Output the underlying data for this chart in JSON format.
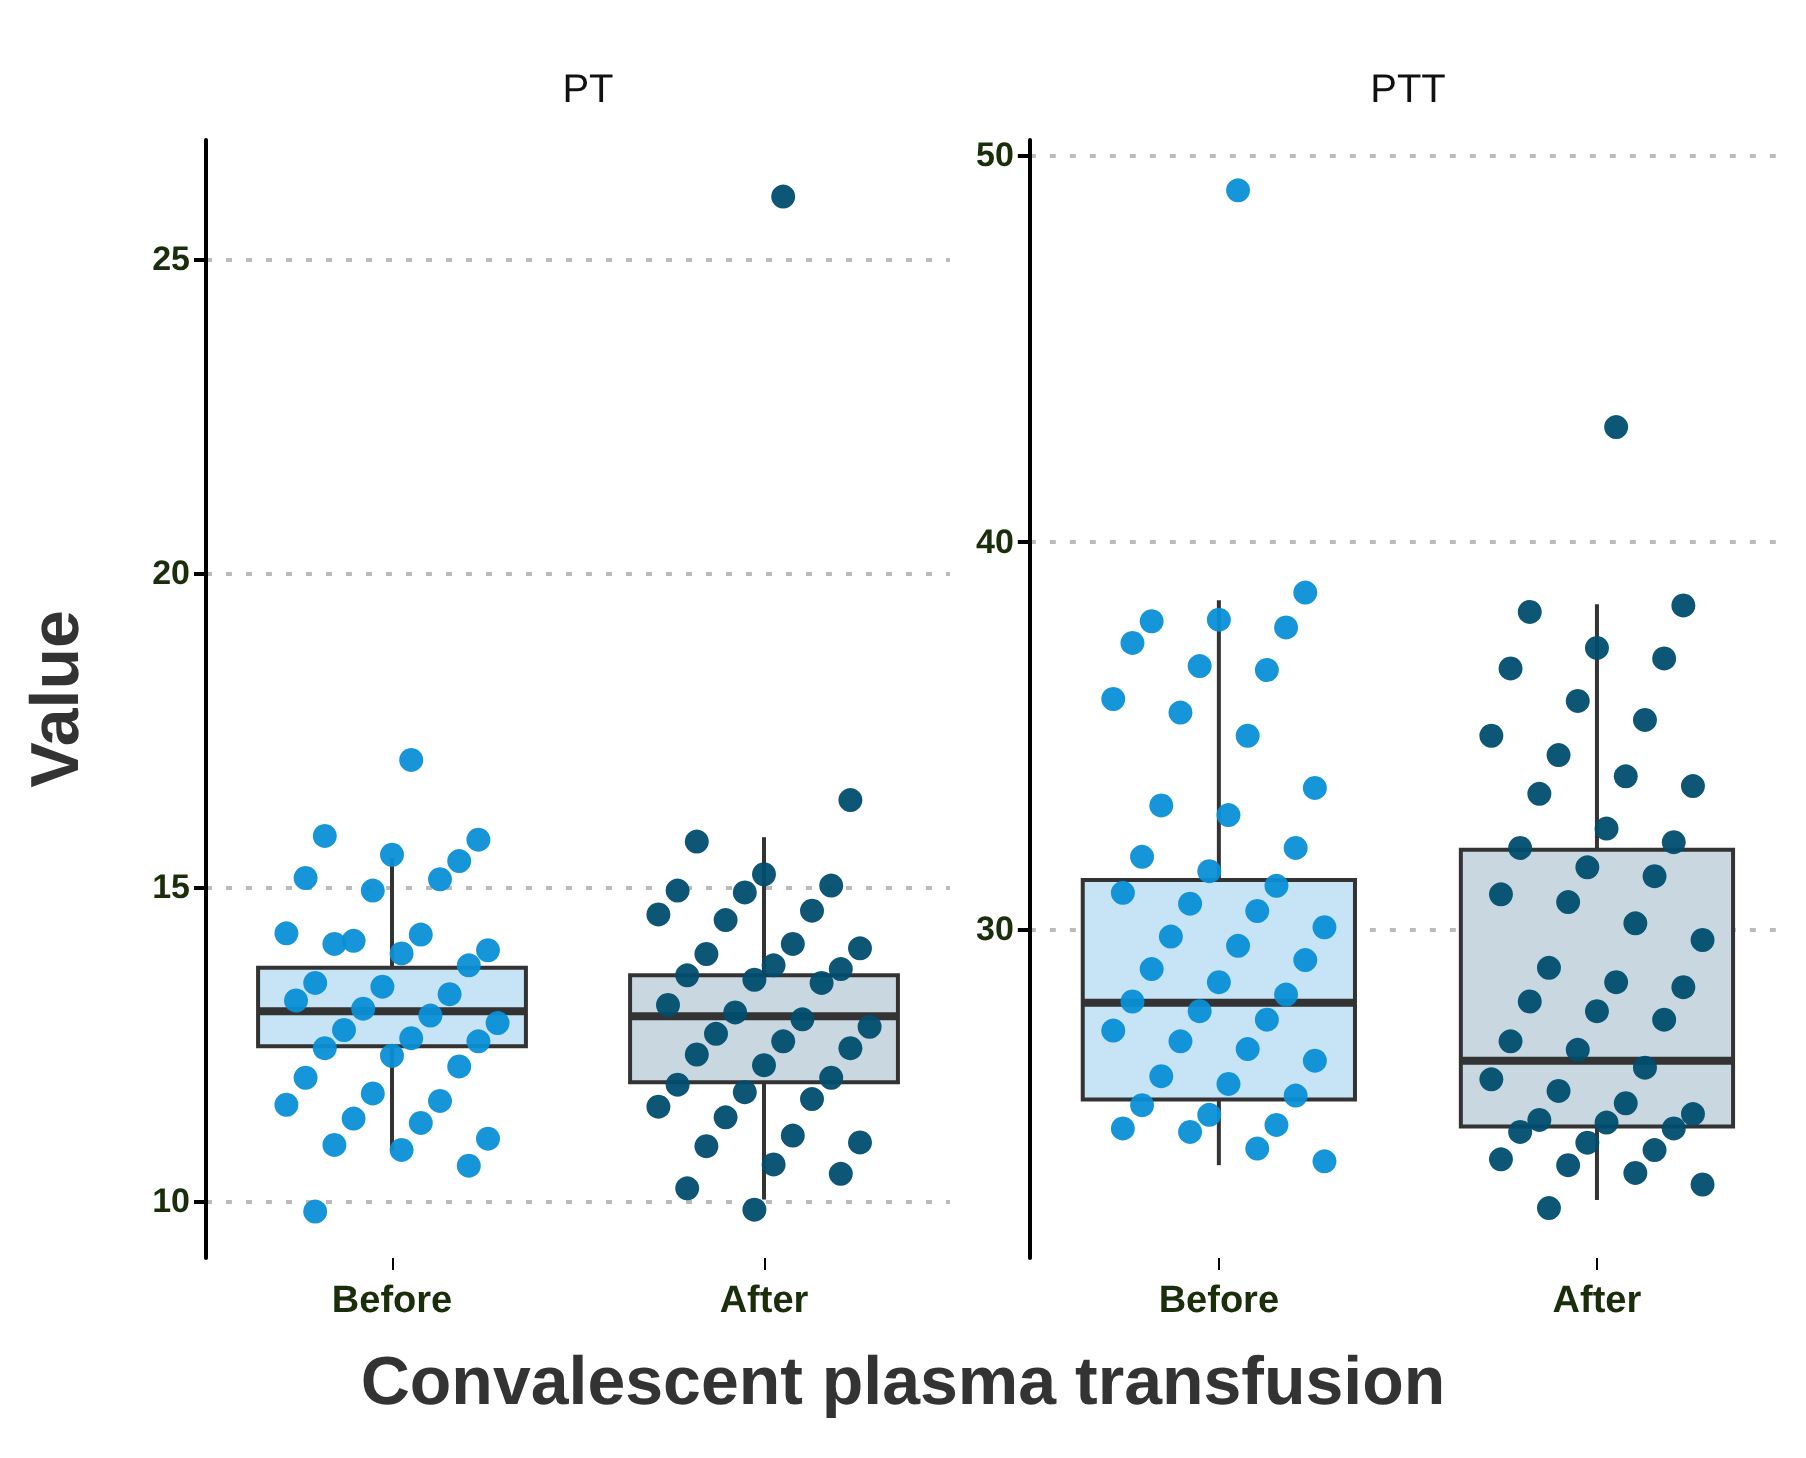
{
  "chart_data": [
    {
      "type": "box",
      "title": "PT",
      "ylabel": "Value",
      "xlabel": "Convalescent plasma transfusion",
      "categories": [
        "Before",
        "After"
      ],
      "ylim": [
        9.1,
        26.9
      ],
      "yticks": [
        10,
        15,
        20,
        25
      ],
      "grid": "y",
      "series": [
        {
          "type": "box",
          "colors": [
            "#c6e4f5",
            "#c9d7e0"
          ],
          "boxes": [
            {
              "low": 10.81,
              "q1": 12.47,
              "median": 13.03,
              "q3": 13.72,
              "high": 15.47
            },
            {
              "low": 10.03,
              "q1": 11.9,
              "median": 12.95,
              "q3": 13.6,
              "high": 15.8
            }
          ]
        },
        {
          "type": "scatter",
          "color": "#0a8fd6",
          "x": [
            "Before",
            "Before",
            "Before",
            "Before",
            "Before",
            "Before",
            "Before",
            "Before",
            "Before",
            "Before",
            "Before",
            "Before",
            "Before",
            "Before",
            "Before",
            "Before",
            "Before",
            "Before",
            "Before",
            "Before",
            "Before",
            "Before",
            "Before",
            "Before",
            "Before",
            "Before",
            "Before",
            "Before",
            "Before",
            "Before",
            "Before",
            "Before",
            "Before",
            "Before",
            "Before",
            "Before",
            "Before",
            "Before",
            "Before"
          ],
          "values": [
            17.03,
            15.76,
            15.82,
            15.52,
            15.42,
            15.15,
            14.95,
            15.13,
            14.27,
            14.15,
            14.25,
            14.0,
            14.1,
            13.95,
            13.76,
            13.48,
            13.42,
            13.3,
            13.2,
            13.07,
            12.96,
            12.84,
            12.73,
            12.6,
            12.55,
            12.44,
            12.32,
            12.15,
            11.97,
            11.72,
            11.6,
            11.54,
            11.32,
            11.25,
            11.0,
            10.9,
            10.82,
            10.57,
            9.84
          ]
        },
        {
          "type": "scatter",
          "color": "#004d6e",
          "x": [
            "After",
            "After",
            "After",
            "After",
            "After",
            "After",
            "After",
            "After",
            "After",
            "After",
            "After",
            "After",
            "After",
            "After",
            "After",
            "After",
            "After",
            "After",
            "After",
            "After",
            "After",
            "After",
            "After",
            "After",
            "After",
            "After",
            "After",
            "After",
            "After",
            "After",
            "After",
            "After",
            "After",
            "After",
            "After",
            "After",
            "After",
            "After",
            "After",
            "After"
          ],
          "values": [
            26.0,
            16.39,
            15.73,
            15.21,
            15.03,
            14.95,
            14.92,
            14.63,
            14.57,
            14.48,
            14.1,
            14.03,
            13.94,
            13.76,
            13.7,
            13.6,
            13.53,
            13.48,
            13.13,
            13.01,
            12.9,
            12.78,
            12.67,
            12.55,
            12.44,
            12.34,
            12.17,
            11.97,
            11.86,
            11.74,
            11.63,
            11.51,
            11.34,
            11.05,
            10.94,
            10.88,
            10.59,
            10.44,
            10.21,
            9.87
          ]
        }
      ]
    },
    {
      "type": "box",
      "title": "PTT",
      "categories": [
        "Before",
        "After"
      ],
      "ylim": [
        21.5,
        50.4
      ],
      "yticks": [
        30,
        40,
        50
      ],
      "grid": "y",
      "series": [
        {
          "type": "box",
          "colors": [
            "#c6e4f5",
            "#c9d7e0"
          ],
          "boxes": [
            {
              "low": 23.9,
              "q1": 25.6,
              "median": 28.1,
              "q3": 31.27,
              "high": 38.5
            },
            {
              "low": 23.0,
              "q1": 24.9,
              "median": 26.6,
              "q3": 32.05,
              "high": 38.4
            }
          ]
        },
        {
          "type": "scatter",
          "color": "#0a8fd6",
          "x": [
            "Before",
            "Before",
            "Before",
            "Before",
            "Before",
            "Before",
            "Before",
            "Before",
            "Before",
            "Before",
            "Before",
            "Before",
            "Before",
            "Before",
            "Before",
            "Before",
            "Before",
            "Before",
            "Before",
            "Before",
            "Before",
            "Before",
            "Before",
            "Before",
            "Before",
            "Before",
            "Before",
            "Before",
            "Before",
            "Before",
            "Before",
            "Before",
            "Before",
            "Before",
            "Before",
            "Before",
            "Before",
            "Before",
            "Before",
            "Before",
            "Before",
            "Before",
            "Before",
            "Before",
            "Before"
          ],
          "values": [
            49.1,
            38.7,
            37.96,
            38.0,
            37.8,
            37.4,
            36.8,
            36.7,
            35.95,
            35.6,
            35.0,
            33.65,
            33.2,
            32.95,
            32.1,
            31.87,
            31.5,
            31.12,
            30.94,
            30.66,
            30.47,
            30.05,
            29.81,
            29.57,
            29.2,
            28.97,
            28.63,
            28.31,
            28.13,
            27.88,
            27.66,
            27.38,
            27.1,
            26.9,
            26.6,
            26.2,
            26.0,
            25.7,
            25.45,
            25.2,
            24.94,
            24.85,
            24.76,
            24.33,
            24.0
          ]
        },
        {
          "type": "scatter",
          "color": "#004d6e",
          "x": [
            "After",
            "After",
            "After",
            "After",
            "After",
            "After",
            "After",
            "After",
            "After",
            "After",
            "After",
            "After",
            "After",
            "After",
            "After",
            "After",
            "After",
            "After",
            "After",
            "After",
            "After",
            "After",
            "After",
            "After",
            "After",
            "After",
            "After",
            "After",
            "After",
            "After",
            "After",
            "After",
            "After",
            "After",
            "After",
            "After",
            "After",
            "After",
            "After",
            "After",
            "After",
            "After",
            "After",
            "After",
            "After",
            "After"
          ],
          "values": [
            42.98,
            38.37,
            38.2,
            37.27,
            37.0,
            36.74,
            35.9,
            35.41,
            35.0,
            34.5,
            33.95,
            33.7,
            33.5,
            32.6,
            32.25,
            32.1,
            31.6,
            31.37,
            30.9,
            30.7,
            30.15,
            29.72,
            29.0,
            28.63,
            28.5,
            28.13,
            27.88,
            27.66,
            27.1,
            26.88,
            26.42,
            26.12,
            25.82,
            25.5,
            25.22,
            25.07,
            25.0,
            24.85,
            24.76,
            24.48,
            24.29,
            24.05,
            23.9,
            23.7,
            23.4,
            22.79
          ]
        }
      ]
    }
  ]
}
